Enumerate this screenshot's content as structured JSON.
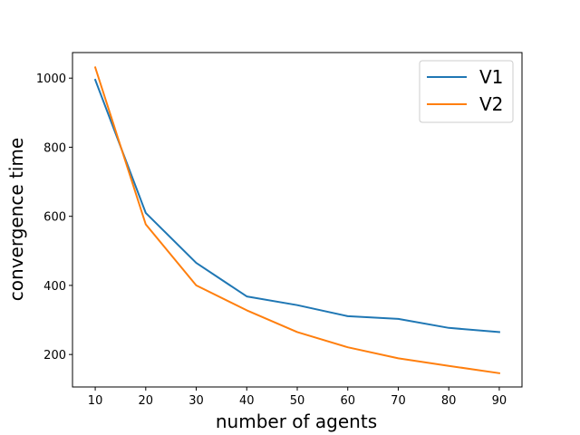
{
  "chart_data": {
    "type": "line",
    "xlabel": "number of agents",
    "ylabel": "convergence time",
    "x": [
      10,
      20,
      30,
      40,
      50,
      60,
      70,
      80,
      90
    ],
    "xticks": [
      10,
      20,
      30,
      40,
      50,
      60,
      70,
      80,
      90
    ],
    "yticks": [
      200,
      400,
      600,
      800,
      1000
    ],
    "xlim": [
      5.5,
      94.5
    ],
    "ylim": [
      106,
      1074
    ],
    "grid": false,
    "legend_position": "upper right",
    "series": [
      {
        "name": "V1",
        "color": "#1f77b4",
        "values": [
          995,
          610,
          465,
          368,
          343,
          311,
          303,
          277,
          265
        ]
      },
      {
        "name": "V2",
        "color": "#ff7f0e",
        "values": [
          1031,
          577,
          400,
          328,
          265,
          221,
          189,
          167,
          146
        ]
      }
    ]
  }
}
